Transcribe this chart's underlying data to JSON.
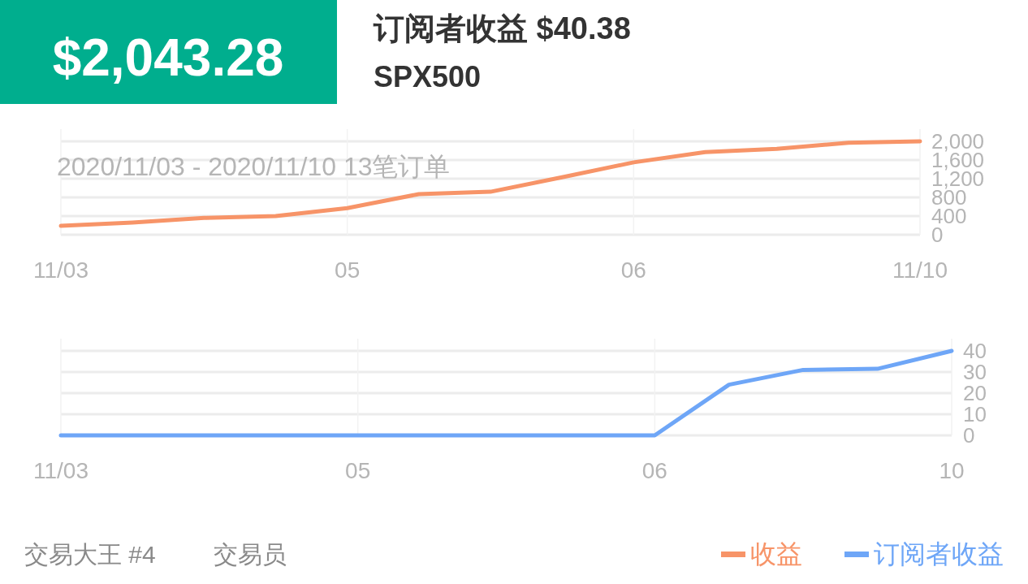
{
  "chart_data": [
    {
      "type": "line",
      "title": "订阅者收益 $40.38",
      "subtitle": "SPX500",
      "annotations": [
        "$2,043.28",
        "2020/11/03 - 2020/11/10  13笔订单",
        "交易大王 #4",
        "交易员"
      ],
      "categories": [
        "11/03",
        null,
        null,
        null,
        "05",
        null,
        null,
        null,
        "06",
        null,
        null,
        null,
        "11/10"
      ],
      "series": [
        {
          "name": "收益",
          "color": "#f79468",
          "values": [
            190,
            260,
            360,
            400,
            570,
            870,
            920,
            1230,
            1550,
            1770,
            1840,
            1970,
            2000
          ]
        }
      ],
      "ylim": [
        0,
        2000
      ],
      "yticks": [
        0,
        400,
        800,
        {
          "value": 1200,
          "label": "1,200"
        },
        {
          "value": 1600,
          "label": "1,600"
        },
        {
          "value": 2000,
          "label": "2,000"
        }
      ],
      "grid": true,
      "legend": "bottom right",
      "marker": "none",
      "line_style": "solid"
    },
    {
      "type": "line",
      "categories": [
        "11/03",
        null,
        null,
        null,
        "05",
        null,
        null,
        null,
        "06",
        null,
        null,
        null,
        "10"
      ],
      "series": [
        {
          "name": "订阅者收益",
          "color": "#6ea6f7",
          "values": [
            0,
            0,
            0,
            0,
            0,
            0,
            0,
            0,
            0,
            24,
            31,
            31.5,
            40
          ]
        }
      ],
      "ylim": [
        0,
        40
      ],
      "yticks": [
        0,
        10,
        20,
        30,
        40
      ],
      "grid": true,
      "legend": "bottom right",
      "marker": "none",
      "line_style": "solid"
    }
  ]
}
